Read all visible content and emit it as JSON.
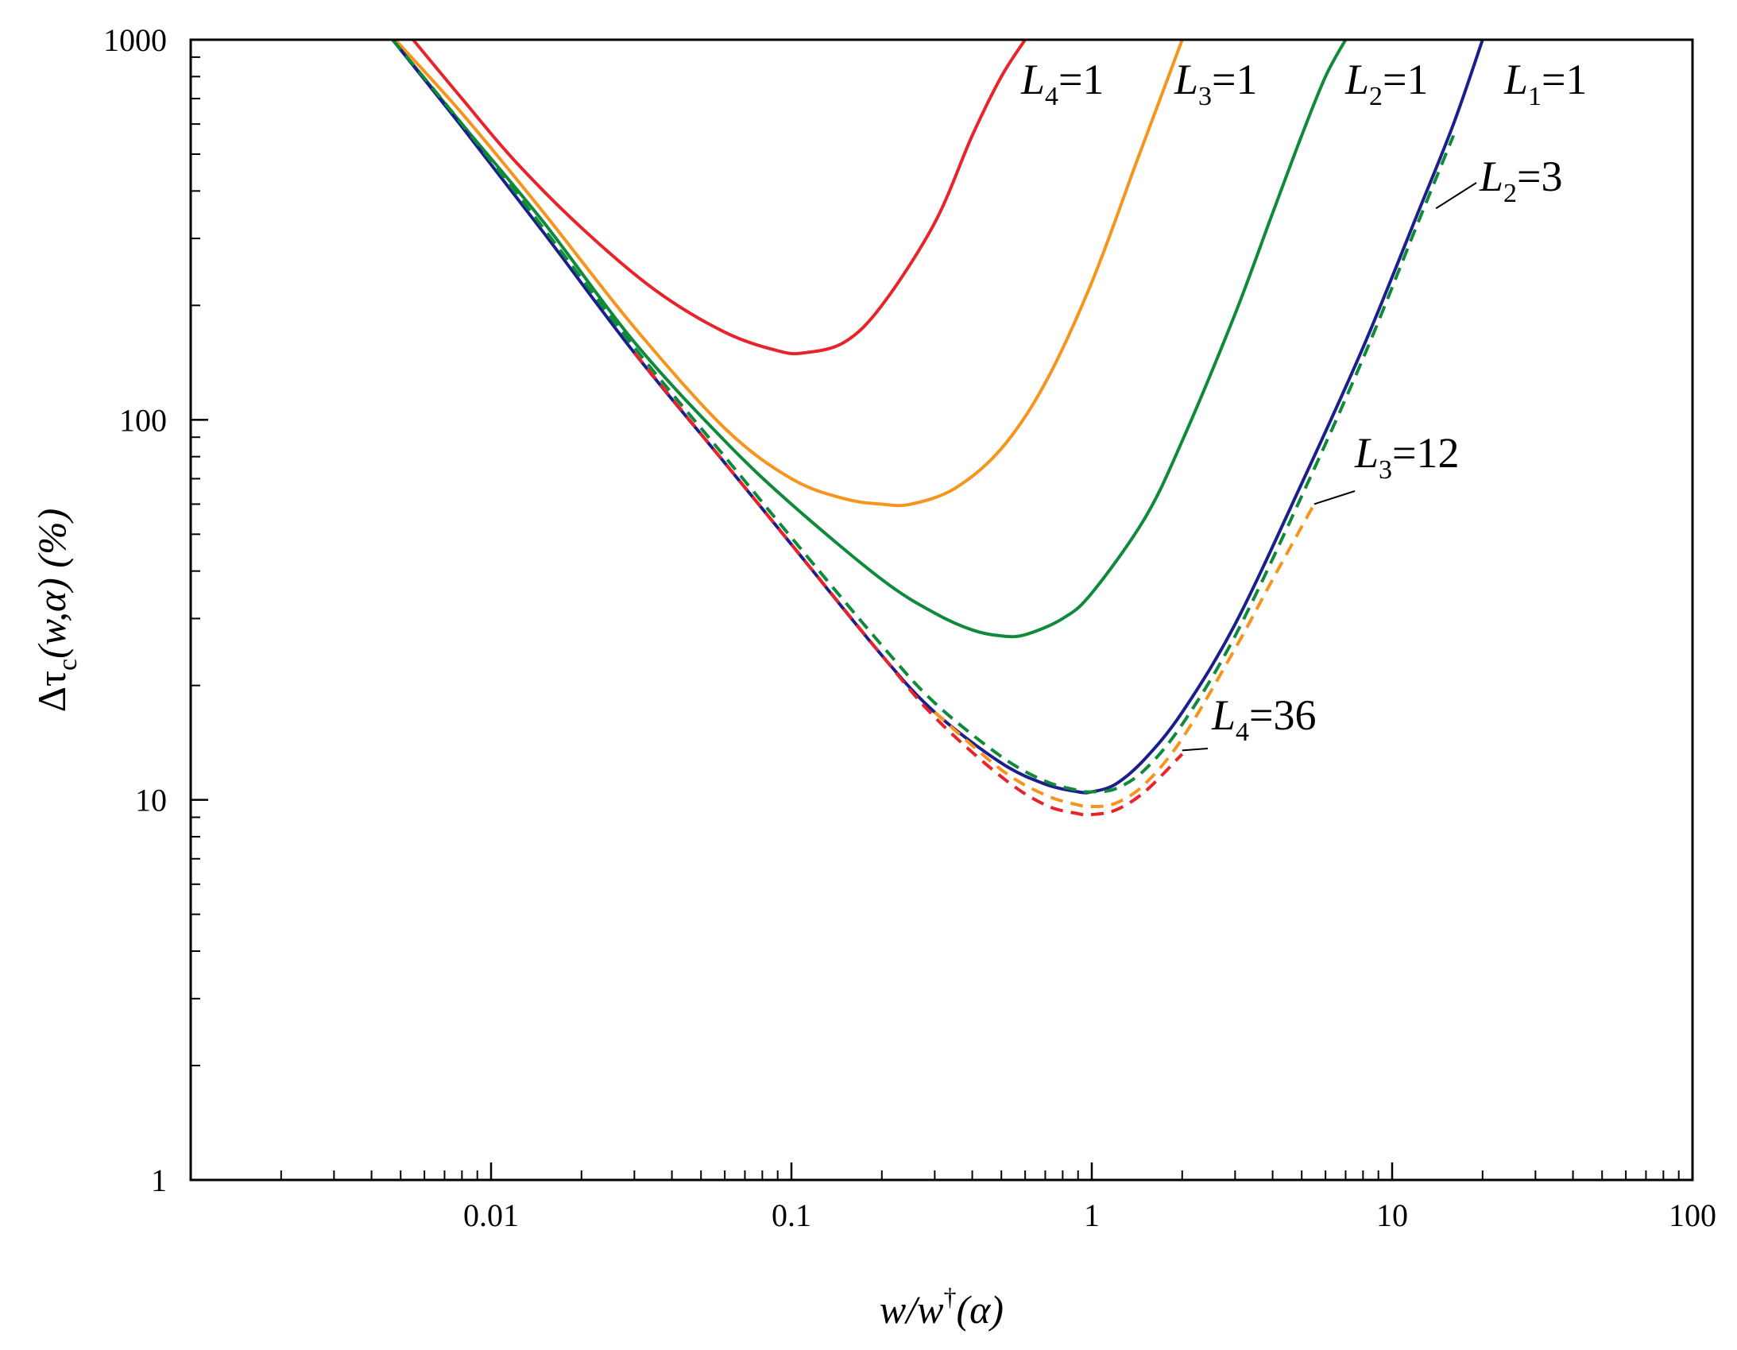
{
  "chart_data": {
    "type": "line",
    "x_scale": "log",
    "y_scale": "log",
    "xlim": [
      0.001,
      100
    ],
    "ylim": [
      1,
      1000
    ],
    "xlabel": {
      "main": "w/w",
      "sup": "†",
      "arg": "(α)"
    },
    "ylabel": {
      "prefix": "Δτ",
      "sub": "c",
      "args": "(w,α) (%)"
    },
    "x_ticks": [
      {
        "value": 0.01,
        "label": "0.01"
      },
      {
        "value": 0.1,
        "label": "0.1"
      },
      {
        "value": 1,
        "label": "1"
      },
      {
        "value": 10,
        "label": "10"
      },
      {
        "value": 100,
        "label": "100"
      }
    ],
    "y_ticks": [
      {
        "value": 1,
        "label": "1"
      },
      {
        "value": 10,
        "label": "10"
      },
      {
        "value": 100,
        "label": "100"
      },
      {
        "value": 1000,
        "label": "1000"
      }
    ],
    "grid": false,
    "colors": {
      "red": "#e8232a",
      "orange": "#f7941d",
      "green": "#0e8a3a",
      "blue": "#1b1f8c"
    },
    "series": [
      {
        "name": "L4=1",
        "color": "#e8232a",
        "style": "solid",
        "x": [
          0.0055,
          0.008,
          0.012,
          0.02,
          0.035,
          0.06,
          0.09,
          0.11,
          0.15,
          0.2,
          0.3,
          0.4,
          0.5,
          0.6
        ],
        "y": [
          1000,
          700,
          480,
          320,
          220,
          170,
          152,
          150,
          160,
          200,
          330,
          560,
          800,
          1000
        ]
      },
      {
        "name": "L3=1",
        "color": "#f7941d",
        "style": "solid",
        "x": [
          0.0048,
          0.008,
          0.015,
          0.03,
          0.06,
          0.1,
          0.15,
          0.2,
          0.25,
          0.35,
          0.5,
          0.7,
          1.0,
          1.4,
          1.8,
          2.0
        ],
        "y": [
          1000,
          640,
          350,
          175,
          95,
          70,
          62,
          60,
          60,
          66,
          84,
          125,
          230,
          470,
          800,
          1000
        ]
      },
      {
        "name": "L2=1",
        "color": "#0e8a3a",
        "style": "solid",
        "x": [
          0.0047,
          0.008,
          0.015,
          0.03,
          0.06,
          0.1,
          0.2,
          0.3,
          0.4,
          0.5,
          0.6,
          0.8,
          1.0,
          1.5,
          2.0,
          3.0,
          4.0,
          5.0,
          6.0,
          7.0
        ],
        "y": [
          1000,
          600,
          330,
          160,
          88,
          60,
          38,
          31,
          28,
          27,
          27.2,
          30,
          35,
          55,
          88,
          190,
          350,
          560,
          800,
          1000
        ]
      },
      {
        "name": "L1=1",
        "color": "#1b1f8c",
        "style": "solid",
        "x": [
          0.0047,
          0.008,
          0.015,
          0.03,
          0.06,
          0.1,
          0.2,
          0.3,
          0.5,
          0.7,
          0.9,
          1.0,
          1.2,
          1.5,
          2.0,
          3.0,
          5.0,
          8.0,
          12.0,
          16.0,
          20.0
        ],
        "y": [
          1000,
          590,
          310,
          150,
          77,
          47,
          24,
          17,
          12.5,
          11,
          10.5,
          10.5,
          11,
          12.8,
          17,
          29,
          68,
          155,
          340,
          600,
          1000
        ]
      },
      {
        "name": "L2=3",
        "color": "#0e8a3a",
        "style": "dashed",
        "x": [
          0.0047,
          0.008,
          0.015,
          0.03,
          0.06,
          0.1,
          0.2,
          0.3,
          0.5,
          0.7,
          0.9,
          1.0,
          1.2,
          1.5,
          2.0,
          3.0,
          5.0,
          8.0,
          12.0,
          16.0
        ],
        "y": [
          1000,
          600,
          318,
          155,
          80,
          49,
          25.5,
          18,
          13,
          11.2,
          10.6,
          10.5,
          10.7,
          12,
          15.8,
          27,
          63,
          145,
          320,
          560
        ]
      },
      {
        "name": "L3=12",
        "color": "#f7941d",
        "style": "dashed",
        "x": [
          0.3,
          0.5,
          0.7,
          0.9,
          1.0,
          1.2,
          1.5,
          2.0,
          3.0,
          4.0,
          5.5
        ],
        "y": [
          17,
          12,
          10.3,
          9.7,
          9.6,
          9.8,
          11,
          14.5,
          25,
          38,
          60
        ]
      },
      {
        "name": "L4=36",
        "color": "#e8232a",
        "style": "dashed",
        "x": [
          0.03,
          0.06,
          0.1,
          0.2,
          0.3,
          0.5,
          0.7,
          0.9,
          1.0,
          1.2,
          1.5,
          2.0
        ],
        "y": [
          150,
          77,
          47,
          24,
          16.5,
          11.5,
          9.7,
          9.2,
          9.15,
          9.4,
          10.5,
          13.2
        ]
      }
    ],
    "annotations": [
      {
        "main": "L",
        "sub": "4",
        "rest": "=1"
      },
      {
        "main": "L",
        "sub": "3",
        "rest": "=1"
      },
      {
        "main": "L",
        "sub": "2",
        "rest": "=1"
      },
      {
        "main": "L",
        "sub": "1",
        "rest": "=1"
      },
      {
        "main": "L",
        "sub": "2",
        "rest": "=3"
      },
      {
        "main": "L",
        "sub": "3",
        "rest": "=12"
      },
      {
        "main": "L",
        "sub": "4",
        "rest": "=36"
      }
    ]
  }
}
